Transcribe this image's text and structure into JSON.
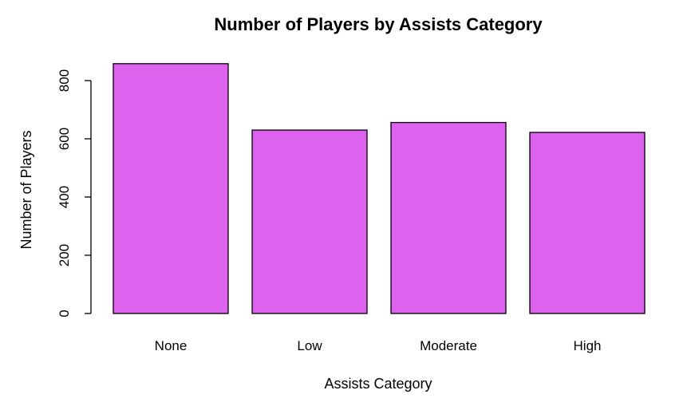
{
  "chart_data": {
    "type": "bar",
    "title": "Number of Players by Assists Category",
    "xlabel": "Assists Category",
    "ylabel": "Number of Players",
    "categories": [
      "None",
      "Low",
      "Moderate",
      "High"
    ],
    "values": [
      858,
      630,
      656,
      622
    ],
    "ylim": [
      0,
      800
    ],
    "yticks": [
      0,
      200,
      400,
      600,
      800
    ],
    "bar_color": "#DD63EE",
    "grid": false,
    "legend": "none"
  }
}
